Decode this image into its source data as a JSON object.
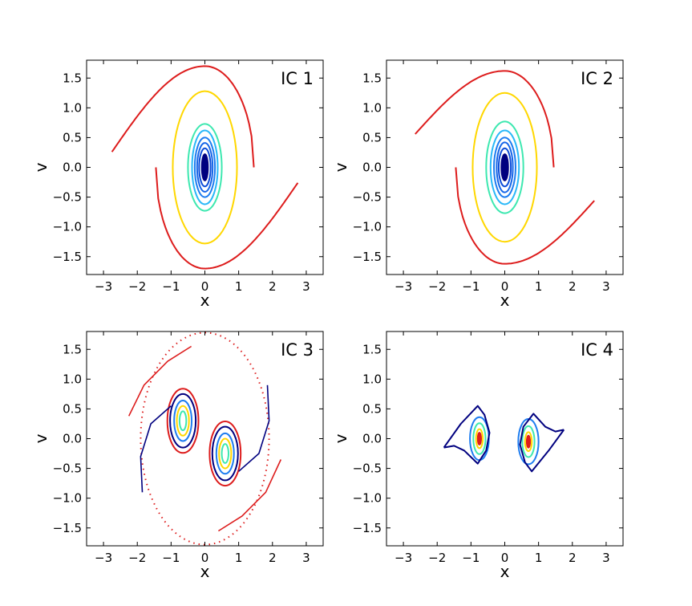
{
  "figure": {
    "subplots": 4
  },
  "chart_data": [
    {
      "type": "scatter",
      "label": "IC 1",
      "xlabel": "x",
      "ylabel": "v",
      "xlim": [
        -3.5,
        3.5
      ],
      "ylim": [
        -1.8,
        1.8
      ],
      "xticks": [
        "−3",
        "−2",
        "−1",
        "0",
        "1",
        "2",
        "3"
      ],
      "yticks": [
        "1.5",
        "1.0",
        "0.5",
        "0.0",
        "−0.5",
        "−1.0",
        "−1.5"
      ],
      "curves": [
        {
          "kind": "ellipse",
          "cx": 0,
          "cy": 0,
          "rx": 0.09,
          "ry": 0.22,
          "color": "#00007f",
          "fill": true
        },
        {
          "kind": "ellipse",
          "cx": 0,
          "cy": 0,
          "rx": 0.17,
          "ry": 0.32,
          "color": "#0d4dd8"
        },
        {
          "kind": "ellipse",
          "cx": 0,
          "cy": 0,
          "rx": 0.23,
          "ry": 0.41,
          "color": "#1565e8"
        },
        {
          "kind": "ellipse",
          "cx": 0,
          "cy": 0,
          "rx": 0.3,
          "ry": 0.5,
          "color": "#1e7df0"
        },
        {
          "kind": "ellipse",
          "cx": 0,
          "cy": 0,
          "rx": 0.38,
          "ry": 0.62,
          "color": "#29b8f8"
        },
        {
          "kind": "ellipse",
          "cx": 0,
          "cy": 0,
          "rx": 0.5,
          "ry": 0.73,
          "color": "#3de8b0"
        },
        {
          "kind": "ellipse",
          "cx": 0,
          "cy": 0,
          "rx": 0.95,
          "ry": 1.28,
          "color": "#ffd700"
        },
        {
          "kind": "separatrix",
          "amp": 1.7,
          "inner": 1.45,
          "wing": 2.75,
          "wingY": 0.26,
          "skew": 0.06,
          "color": "#dd1c1c"
        }
      ]
    },
    {
      "type": "scatter",
      "label": "IC 2",
      "xlabel": "x",
      "ylabel": "v",
      "xlim": [
        -3.5,
        3.5
      ],
      "ylim": [
        -1.8,
        1.8
      ],
      "xticks": [
        "−3",
        "−2",
        "−1",
        "0",
        "1",
        "2",
        "3"
      ],
      "yticks": [
        "1.5",
        "1.0",
        "0.5",
        "0.0",
        "−0.5",
        "−1.0",
        "−1.5"
      ],
      "curves": [
        {
          "kind": "ellipse",
          "cx": 0,
          "cy": 0,
          "rx": 0.1,
          "ry": 0.22,
          "color": "#00007f",
          "fill": true
        },
        {
          "kind": "ellipse",
          "cx": 0,
          "cy": 0,
          "rx": 0.18,
          "ry": 0.32,
          "color": "#0d4dd8"
        },
        {
          "kind": "ellipse",
          "cx": 0,
          "cy": 0,
          "rx": 0.24,
          "ry": 0.42,
          "color": "#1565e8"
        },
        {
          "kind": "ellipse",
          "cx": 0,
          "cy": 0,
          "rx": 0.32,
          "ry": 0.5,
          "color": "#1e7df0"
        },
        {
          "kind": "ellipse",
          "cx": 0,
          "cy": 0,
          "rx": 0.42,
          "ry": 0.62,
          "color": "#29b8f8"
        },
        {
          "kind": "ellipse",
          "cx": 0,
          "cy": 0,
          "rx": 0.55,
          "ry": 0.77,
          "color": "#3de8b0"
        },
        {
          "kind": "ellipse",
          "cx": 0,
          "cy": 0,
          "rx": 0.95,
          "ry": 1.25,
          "color": "#ffd700"
        },
        {
          "kind": "separatrix",
          "amp": 1.62,
          "inner": 1.45,
          "wing": 2.65,
          "wingY": 0.56,
          "skew": 0.05,
          "color": "#dd1c1c"
        }
      ]
    },
    {
      "type": "scatter",
      "label": "IC 3",
      "xlabel": "x",
      "ylabel": "v",
      "xlim": [
        -3.5,
        3.5
      ],
      "ylim": [
        -1.8,
        1.8
      ],
      "xticks": [
        "−3",
        "−2",
        "−1",
        "0",
        "1",
        "2",
        "3"
      ],
      "yticks": [
        "1.5",
        "1.0",
        "0.5",
        "0.0",
        "−0.5",
        "−1.0",
        "−1.5"
      ],
      "curves": [
        {
          "kind": "ellipse",
          "cx": -0.65,
          "cy": 0.3,
          "rx": 0.1,
          "ry": 0.16,
          "color": "#3de8b0"
        },
        {
          "kind": "ellipse",
          "cx": -0.65,
          "cy": 0.3,
          "rx": 0.18,
          "ry": 0.25,
          "color": "#ffd700"
        },
        {
          "kind": "ellipse",
          "cx": -0.65,
          "cy": 0.3,
          "rx": 0.26,
          "ry": 0.34,
          "color": "#1e7df0"
        },
        {
          "kind": "ellipse",
          "cx": -0.65,
          "cy": 0.3,
          "rx": 0.38,
          "ry": 0.45,
          "color": "#00007f"
        },
        {
          "kind": "ellipse",
          "cx": -0.65,
          "cy": 0.3,
          "rx": 0.46,
          "ry": 0.54,
          "color": "#dd1c1c"
        },
        {
          "kind": "ellipse",
          "cx": 0.6,
          "cy": -0.25,
          "rx": 0.1,
          "ry": 0.16,
          "color": "#3de8b0"
        },
        {
          "kind": "ellipse",
          "cx": 0.6,
          "cy": -0.25,
          "rx": 0.18,
          "ry": 0.25,
          "color": "#ffd700"
        },
        {
          "kind": "ellipse",
          "cx": 0.6,
          "cy": -0.25,
          "rx": 0.26,
          "ry": 0.34,
          "color": "#1e7df0"
        },
        {
          "kind": "ellipse",
          "cx": 0.6,
          "cy": -0.25,
          "rx": 0.38,
          "ry": 0.45,
          "color": "#00007f"
        },
        {
          "kind": "ellipse",
          "cx": 0.6,
          "cy": -0.25,
          "rx": 0.46,
          "ry": 0.54,
          "color": "#dd1c1c"
        },
        {
          "kind": "dotted-ellipse",
          "cx": 0,
          "cy": 0,
          "rx": 1.9,
          "ry": 1.78,
          "color": "#dd1c1c"
        },
        {
          "kind": "arc",
          "points": [
            [
              -2.25,
              0.38
            ],
            [
              -1.8,
              0.9
            ],
            [
              -1.1,
              1.3
            ],
            [
              -0.4,
              1.55
            ]
          ],
          "color": "#dd1c1c"
        },
        {
          "kind": "arc",
          "points": [
            [
              2.25,
              -0.35
            ],
            [
              1.8,
              -0.9
            ],
            [
              1.1,
              -1.3
            ],
            [
              0.4,
              -1.55
            ]
          ],
          "color": "#dd1c1c"
        },
        {
          "kind": "arc",
          "points": [
            [
              -1.85,
              -0.9
            ],
            [
              -1.9,
              -0.3
            ],
            [
              -1.6,
              0.25
            ],
            [
              -1.0,
              0.55
            ]
          ],
          "color": "#00007f"
        },
        {
          "kind": "arc",
          "points": [
            [
              1.85,
              0.9
            ],
            [
              1.9,
              0.3
            ],
            [
              1.6,
              -0.25
            ],
            [
              1.0,
              -0.55
            ]
          ],
          "color": "#00007f"
        }
      ]
    },
    {
      "type": "scatter",
      "label": "IC 4",
      "xlabel": "x",
      "ylabel": "v",
      "xlim": [
        -3.5,
        3.5
      ],
      "ylim": [
        -1.8,
        1.8
      ],
      "xticks": [
        "−3",
        "−2",
        "−1",
        "0",
        "1",
        "2",
        "3"
      ],
      "yticks": [
        "1.5",
        "1.0",
        "0.5",
        "0.0",
        "−0.5",
        "−1.0",
        "−1.5"
      ],
      "curves": [
        {
          "kind": "ellipse",
          "cx": -0.75,
          "cy": 0.0,
          "rx": 0.05,
          "ry": 0.1,
          "color": "#dd1c1c",
          "fill": true
        },
        {
          "kind": "ellipse",
          "cx": -0.75,
          "cy": 0.0,
          "rx": 0.1,
          "ry": 0.16,
          "color": "#ffd700"
        },
        {
          "kind": "ellipse",
          "cx": -0.75,
          "cy": 0.0,
          "rx": 0.18,
          "ry": 0.26,
          "color": "#3de8b0"
        },
        {
          "kind": "ellipse",
          "cx": -0.75,
          "cy": 0.0,
          "rx": 0.28,
          "ry": 0.36,
          "color": "#1e7df0"
        },
        {
          "kind": "ellipse",
          "cx": 0.7,
          "cy": -0.05,
          "rx": 0.05,
          "ry": 0.1,
          "color": "#dd1c1c",
          "fill": true
        },
        {
          "kind": "ellipse",
          "cx": 0.7,
          "cy": -0.05,
          "rx": 0.1,
          "ry": 0.16,
          "color": "#ffd700"
        },
        {
          "kind": "ellipse",
          "cx": 0.7,
          "cy": -0.05,
          "rx": 0.18,
          "ry": 0.26,
          "color": "#3de8b0"
        },
        {
          "kind": "ellipse",
          "cx": 0.7,
          "cy": -0.05,
          "rx": 0.3,
          "ry": 0.38,
          "color": "#1e7df0"
        },
        {
          "kind": "polyline",
          "points": [
            [
              -1.8,
              -0.15
            ],
            [
              -1.3,
              0.25
            ],
            [
              -0.8,
              0.55
            ],
            [
              -0.6,
              0.4
            ],
            [
              -0.45,
              0.1
            ],
            [
              -0.55,
              -0.2
            ],
            [
              -0.8,
              -0.42
            ],
            [
              -1.2,
              -0.2
            ],
            [
              -1.5,
              -0.12
            ],
            [
              -1.8,
              -0.15
            ]
          ],
          "color": "#00007f"
        },
        {
          "kind": "polyline",
          "points": [
            [
              1.75,
              0.15
            ],
            [
              1.3,
              -0.2
            ],
            [
              0.8,
              -0.55
            ],
            [
              0.6,
              -0.4
            ],
            [
              0.45,
              -0.1
            ],
            [
              0.55,
              0.2
            ],
            [
              0.85,
              0.42
            ],
            [
              1.2,
              0.2
            ],
            [
              1.5,
              0.12
            ],
            [
              1.75,
              0.15
            ]
          ],
          "color": "#00007f"
        }
      ]
    }
  ]
}
